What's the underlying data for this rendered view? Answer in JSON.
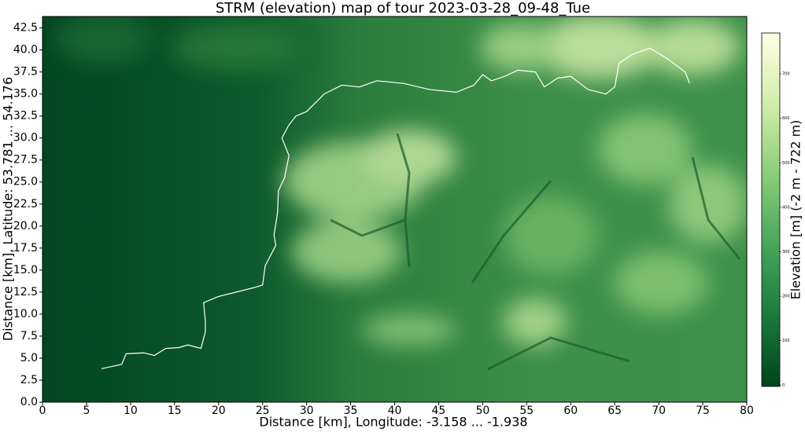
{
  "chart_data": {
    "type": "heatmap",
    "title": "STRM (elevation) map of tour 2023-03-28_09-48_Tue",
    "xlabel": "Distance [km], Longitude: -3.158 ... -1.938",
    "ylabel": "Distance [km], Latitude: 53.781 ... 54.176",
    "colorbar_label": "Elevation [m] (-2 m - 722 m)",
    "xlim": [
      0,
      80
    ],
    "ylim": [
      0,
      43.8
    ],
    "xticks": [
      0,
      5,
      10,
      15,
      20,
      25,
      30,
      35,
      40,
      45,
      50,
      55,
      60,
      65,
      70,
      75,
      80
    ],
    "yticks": [
      {
        "value": 0,
        "label": "0.0"
      },
      2.5,
      {
        "value": 5,
        "label": "5.0"
      },
      7.5,
      {
        "value": 10,
        "label": "10.0"
      },
      12.5,
      {
        "value": 15,
        "label": "15.0"
      },
      17.5,
      {
        "value": 20,
        "label": "20.0"
      },
      22.5,
      {
        "value": 25,
        "label": "25.0"
      },
      27.5,
      {
        "value": 30,
        "label": "30.0"
      },
      32.5,
      {
        "value": 35,
        "label": "35.0"
      },
      37.5,
      {
        "value": 40,
        "label": "40.0"
      },
      42.5
    ],
    "clim": [
      -3,
      792
    ],
    "cticks": [
      0,
      100,
      200,
      300,
      400,
      500,
      600,
      700
    ],
    "colormap": [
      "#00441b",
      "#1b7a3e",
      "#47a65a",
      "#8bcd7a",
      "#d2edaa",
      "#ffffe5"
    ],
    "track_color": "#ffffff",
    "x": [
      6.7,
      9,
      9.5,
      11.5,
      12.7,
      14,
      15.5,
      16.5,
      18,
      18.5,
      18.5,
      18.3,
      20,
      22,
      24,
      25,
      25.3,
      26.5,
      26.3,
      26.7,
      26.8,
      27.5,
      28,
      27.2,
      28,
      28.8,
      30,
      32,
      34,
      36,
      38,
      41,
      44,
      47,
      49,
      50,
      51,
      52.5,
      54,
      56,
      57,
      58.5,
      60,
      62,
      64,
      65,
      65.5,
      67,
      69,
      71,
      73,
      73.5
    ],
    "y": [
      3.8,
      4.3,
      5.5,
      5.6,
      5.3,
      6.1,
      6.2,
      6.5,
      6.1,
      8,
      9.2,
      11.3,
      12,
      12.5,
      13,
      13.3,
      15.5,
      17.8,
      19,
      21.5,
      24,
      25.5,
      28,
      30,
      31.5,
      32.5,
      33,
      35,
      36,
      35.8,
      36.5,
      36.2,
      35.5,
      35.2,
      36,
      37.2,
      36.5,
      37,
      37.7,
      37.5,
      35.8,
      36.8,
      37,
      35.5,
      35,
      35.8,
      38.5,
      39.5,
      40.2,
      39,
      37.5,
      36.2
    ]
  }
}
